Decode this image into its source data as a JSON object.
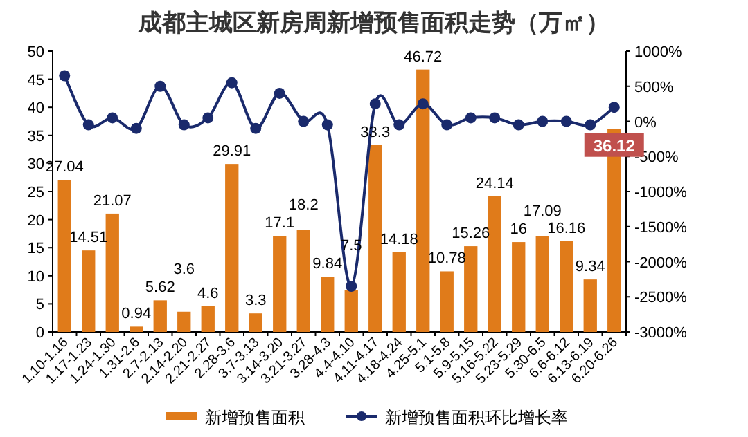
{
  "chart_data": {
    "type": "bar",
    "title": "成都主城区新房周新增预售面积走势（万㎡）",
    "categories": [
      "1.10-1.16",
      "1.17-1.23",
      "1.24-1.30",
      "1.31-2.6",
      "2.7-2.13",
      "2.14-2.20",
      "2.21-2.27",
      "2.28-3.6",
      "3.7-3.13",
      "3.14-3.20",
      "3.21-3.27",
      "3.28-4.3",
      "4.4-4.10",
      "4.11-4.17",
      "4.18-4.24",
      "4.25-5.1",
      "5.1-5.8",
      "5.9-5.15",
      "5.16-5.22",
      "5.23-5.29",
      "5.30-6.5",
      "6.6-6.12",
      "6.13-6.19",
      "6.20-6.26"
    ],
    "series": [
      {
        "name": "新增预售面积",
        "color": "#e07b1a",
        "values": [
          27.04,
          14.51,
          21.07,
          0.94,
          5.62,
          3.6,
          4.6,
          29.91,
          3.3,
          17.1,
          18.2,
          9.84,
          7.5,
          33.3,
          14.18,
          46.72,
          10.78,
          15.26,
          24.14,
          16,
          17.09,
          16.16,
          9.34,
          36.12
        ],
        "value_labels": [
          "27.04",
          "14.51",
          "21.07",
          "0.94",
          "5.62",
          "3.6",
          "4.6",
          "29.91",
          "3.3",
          "17.1",
          "18.2",
          "9.84",
          "7.5",
          "33.3",
          "14.18",
          "46.72",
          "10.78",
          "15.26",
          "24.14",
          "16",
          "17.09",
          "16.16",
          "9.34",
          "36.12"
        ]
      },
      {
        "name": "新增预售面积环比增长率",
        "type": "line",
        "axis": "y2",
        "color": "#1a2a6c",
        "marker": "circle",
        "values": [
          650,
          -50,
          50,
          -100,
          500,
          -50,
          50,
          550,
          -100,
          400,
          0,
          -50,
          -2350,
          250,
          -50,
          250,
          -50,
          50,
          50,
          -50,
          0,
          0,
          -50,
          200
        ]
      }
    ],
    "ylim": [
      0,
      50
    ],
    "yticks": [
      0,
      5,
      10,
      15,
      20,
      25,
      30,
      35,
      40,
      45,
      50
    ],
    "y2lim": [
      -3000,
      1000
    ],
    "y2ticks": [
      {
        "value": -3000,
        "label": "-3000%"
      },
      {
        "value": -2500,
        "label": "-2500%"
      },
      {
        "value": -2000,
        "label": "-2000%"
      },
      {
        "value": -1500,
        "label": "-1500%"
      },
      {
        "value": -1000,
        "label": "-1000%"
      },
      {
        "value": -500,
        "label": "-500%"
      },
      {
        "value": 0,
        "label": "0%"
      },
      {
        "value": 500,
        "label": "500%"
      },
      {
        "value": 1000,
        "label": "1000%"
      }
    ],
    "grid": false,
    "legend": "bottom"
  }
}
